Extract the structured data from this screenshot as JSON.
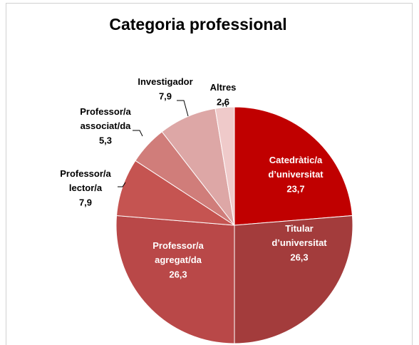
{
  "chart_data": {
    "type": "pie",
    "title": "Categoria professional",
    "categories": [
      "Catedràtic/a d’universitat",
      "Titular d’universitat",
      "Professor/a agregat/da",
      "Professor/a lector/a",
      "Professor/a associat/da",
      "Investigador",
      "Altres"
    ],
    "values": [
      23.7,
      26.3,
      26.3,
      7.9,
      5.3,
      7.9,
      2.6
    ],
    "value_labels": [
      "23,7",
      "26,3",
      "26,3",
      "7,9",
      "5,3",
      "7,9",
      "2,6"
    ],
    "colors": [
      "#c00000",
      "#a33c3c",
      "#b94848",
      "#c55451",
      "#d07d7a",
      "#dda7a6",
      "#efcaca"
    ]
  }
}
